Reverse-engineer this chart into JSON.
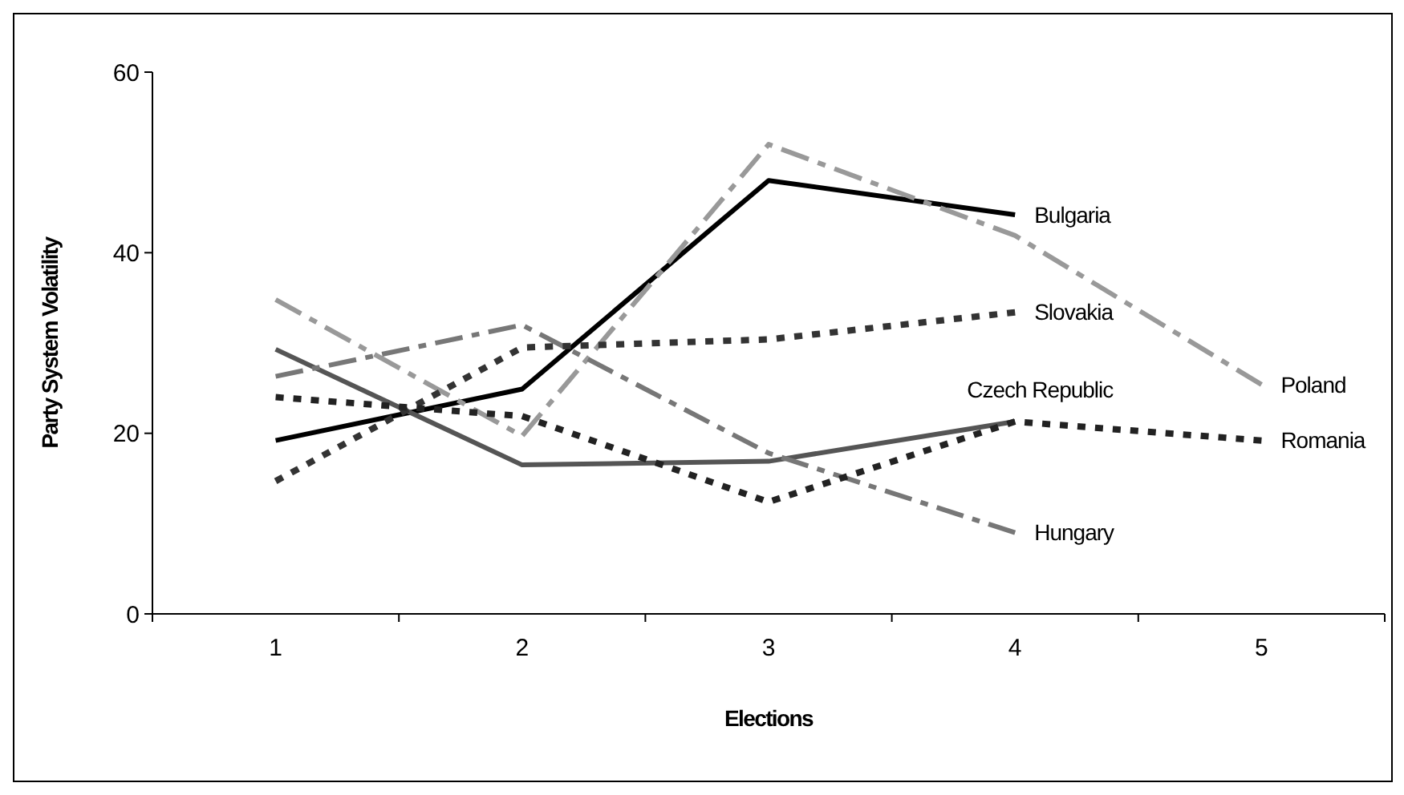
{
  "chart_data": {
    "type": "line",
    "xlabel": "Elections",
    "ylabel": "Party System Volatility",
    "categories": [
      "1",
      "2",
      "3",
      "4",
      "5"
    ],
    "ylim": [
      0,
      60
    ],
    "yticks": [
      0,
      20,
      40,
      60
    ],
    "grid": false,
    "marker": "none",
    "series": [
      {
        "name": "Bulgaria",
        "color": "#000000",
        "line_style": "solid",
        "values": [
          19.2,
          24.9,
          48,
          44.2,
          null
        ]
      },
      {
        "name": "Czech Republic",
        "color": "#555555",
        "line_style": "solid",
        "values": [
          29.3,
          16.5,
          16.9,
          21.3,
          null
        ]
      },
      {
        "name": "Poland",
        "color": "#999999",
        "line_style": "dashed",
        "values": [
          34.8,
          19.7,
          52,
          41.9,
          25.4
        ]
      },
      {
        "name": "Hungary",
        "color": "#777777",
        "line_style": "dashed",
        "values": [
          26.3,
          32,
          17.8,
          9,
          null
        ]
      },
      {
        "name": "Slovakia",
        "color": "#333333",
        "line_style": "dotted",
        "values": [
          14.7,
          29.5,
          30.4,
          33.4,
          null
        ]
      },
      {
        "name": "Romania",
        "color": "#222222",
        "line_style": "dotted",
        "values": [
          24,
          21.9,
          12.4,
          21.3,
          19.2
        ]
      }
    ]
  }
}
